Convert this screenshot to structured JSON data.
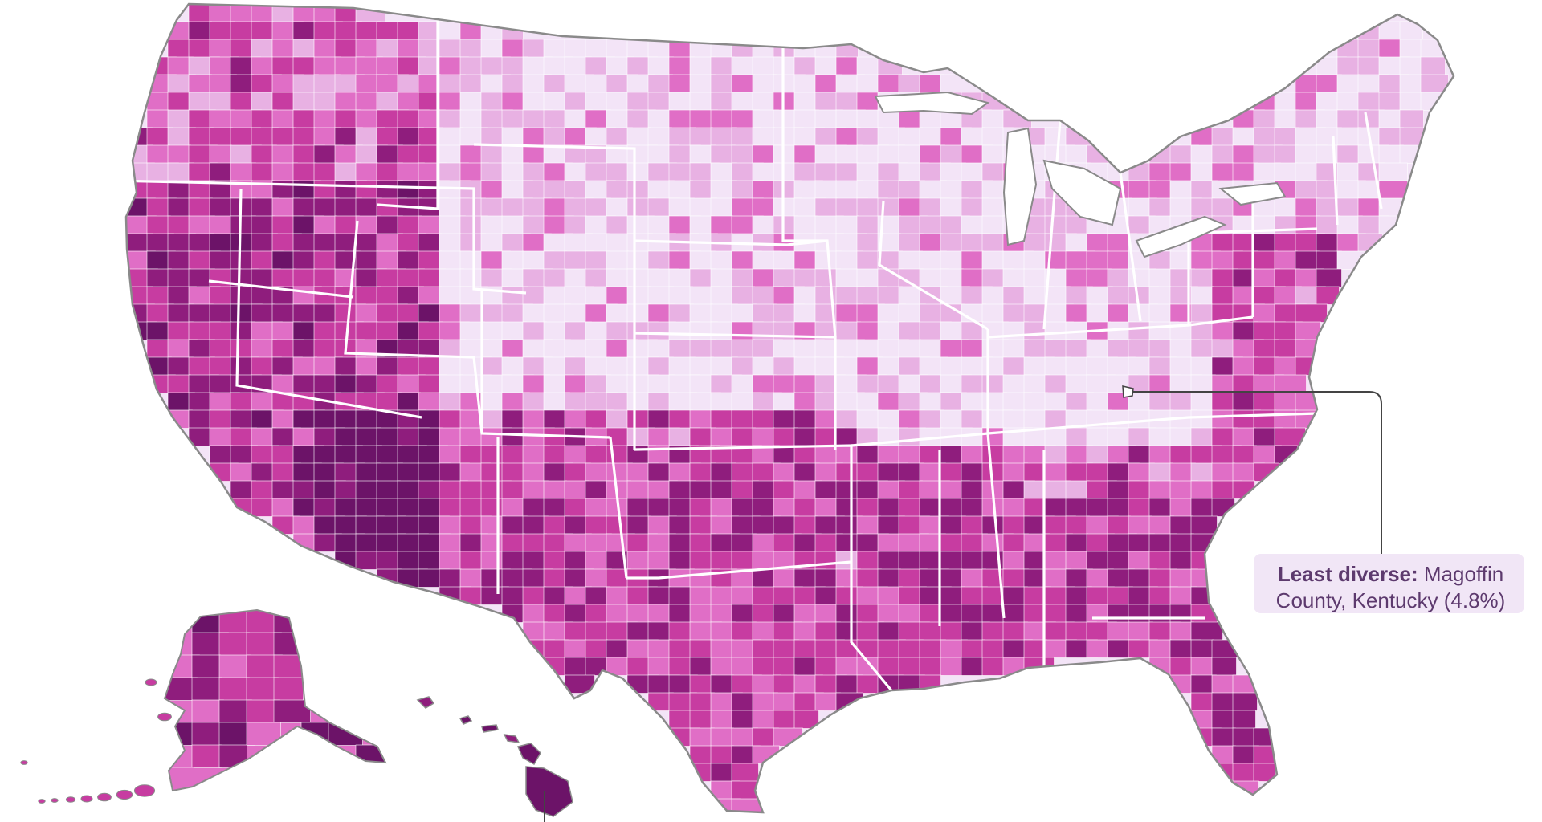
{
  "palette": {
    "level_1": "#f3e4f7",
    "level_2": "#e8b1e3",
    "level_3": "#e06ec6",
    "level_4": "#c73ca1",
    "level_5": "#8f1d7d",
    "level_6": "#6c1368",
    "state_border": "#ffffff",
    "outline": "#8a8a8a",
    "leader_line": "#444444",
    "callout_bg": "#f1e6f6",
    "callout_text": "#5d3a6e"
  },
  "annotations": {
    "least_diverse": {
      "label": "Least diverse:",
      "text_1": "Magoffin",
      "text_2": "County, Kentucky (4.8%)"
    }
  }
}
